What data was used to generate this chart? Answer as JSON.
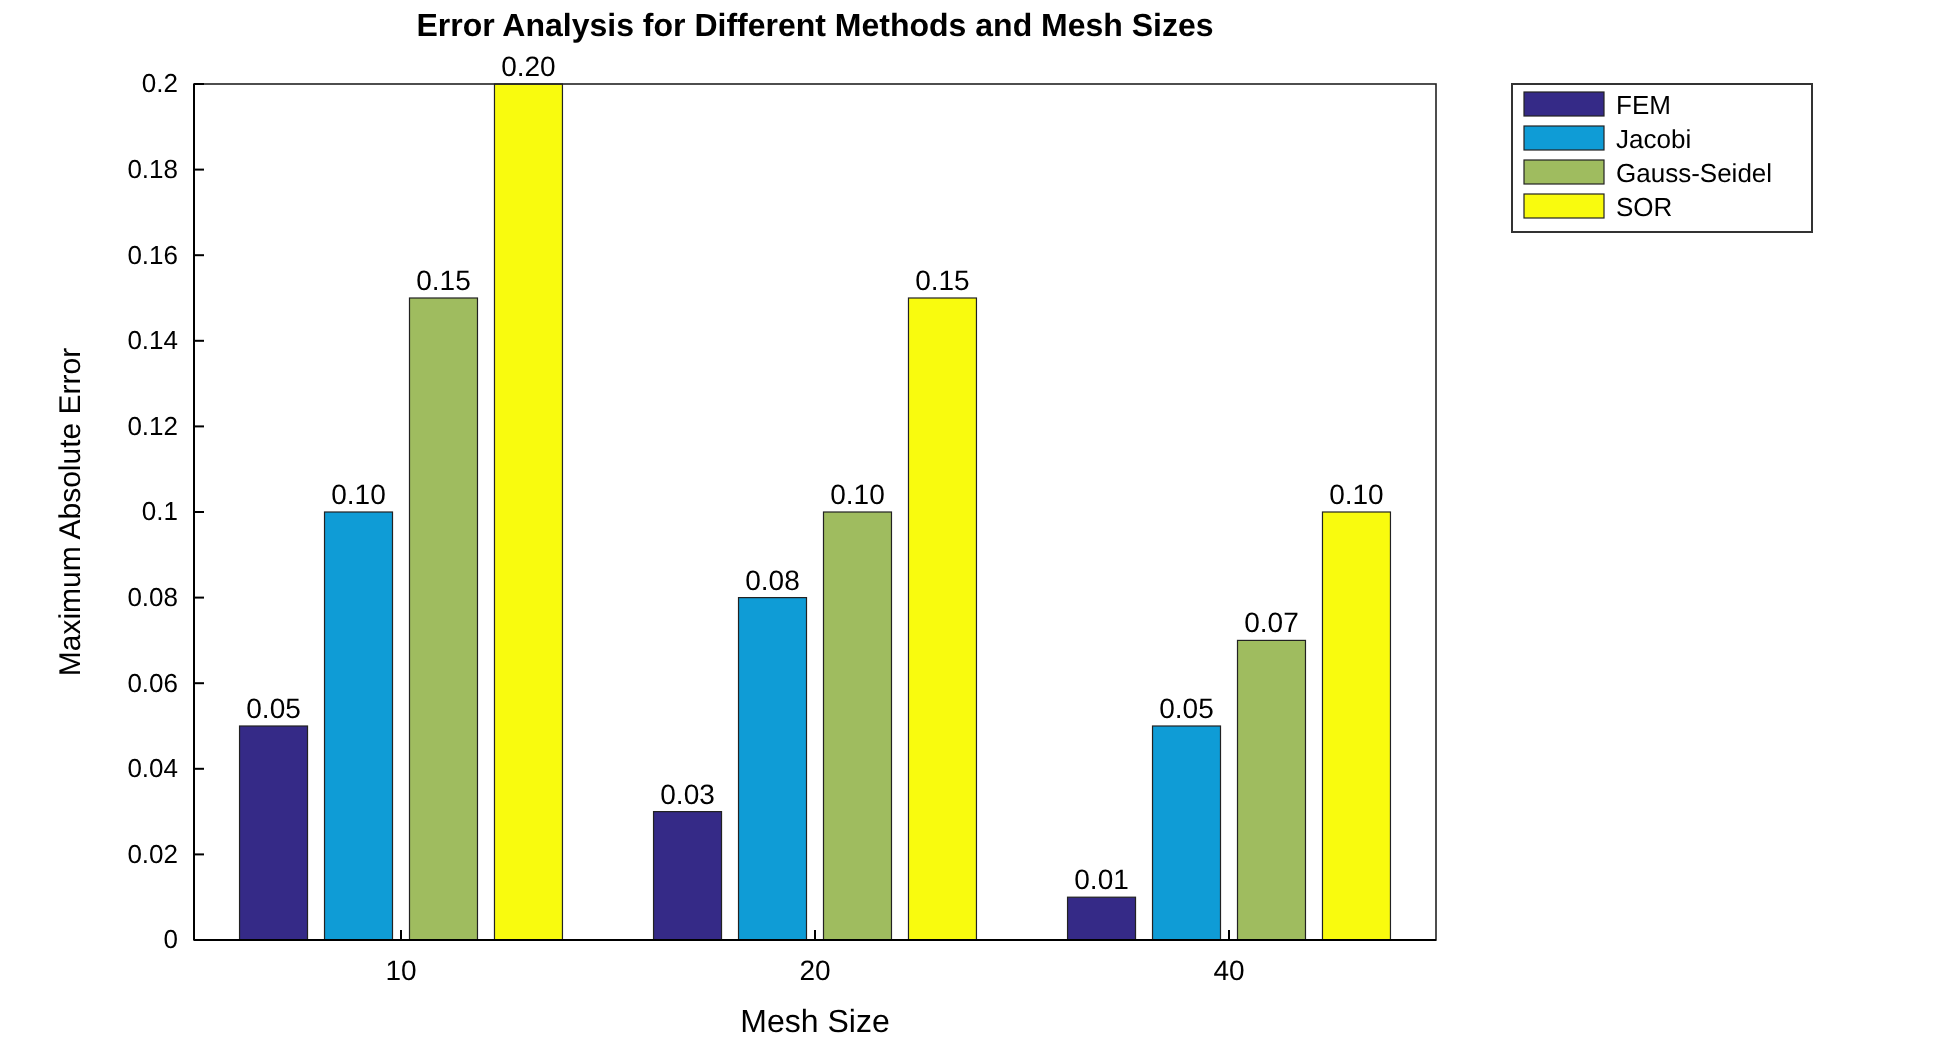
{
  "chart_data": {
    "type": "bar",
    "title": "Error Analysis for Different Methods and Mesh Sizes",
    "xlabel": "Mesh Size",
    "ylabel": "Maximum Absolute Error",
    "categories": [
      "10",
      "20",
      "40"
    ],
    "series": [
      {
        "name": "FEM",
        "color": "#352a87",
        "values": [
          0.05,
          0.03,
          0.01
        ],
        "value_labels": [
          "0.05",
          "0.03",
          "0.01"
        ]
      },
      {
        "name": "Jacobi",
        "color": "#0f9cd6",
        "values": [
          0.1,
          0.08,
          0.05
        ],
        "value_labels": [
          "0.10",
          "0.08",
          "0.05"
        ]
      },
      {
        "name": "Gauss-Seidel",
        "color": "#9fbc5f",
        "values": [
          0.15,
          0.1,
          0.07
        ],
        "value_labels": [
          "0.15",
          "0.10",
          "0.07"
        ]
      },
      {
        "name": "SOR",
        "color": "#f9fb0e",
        "values": [
          0.2,
          0.15,
          0.1
        ],
        "value_labels": [
          "0.20",
          "0.15",
          "0.10"
        ]
      }
    ],
    "ylim": [
      0,
      0.2
    ],
    "yticks": [
      0,
      0.02,
      0.04,
      0.06,
      0.08,
      0.1,
      0.12,
      0.14,
      0.16,
      0.18,
      0.2
    ],
    "grid": false,
    "legend": "top right"
  }
}
